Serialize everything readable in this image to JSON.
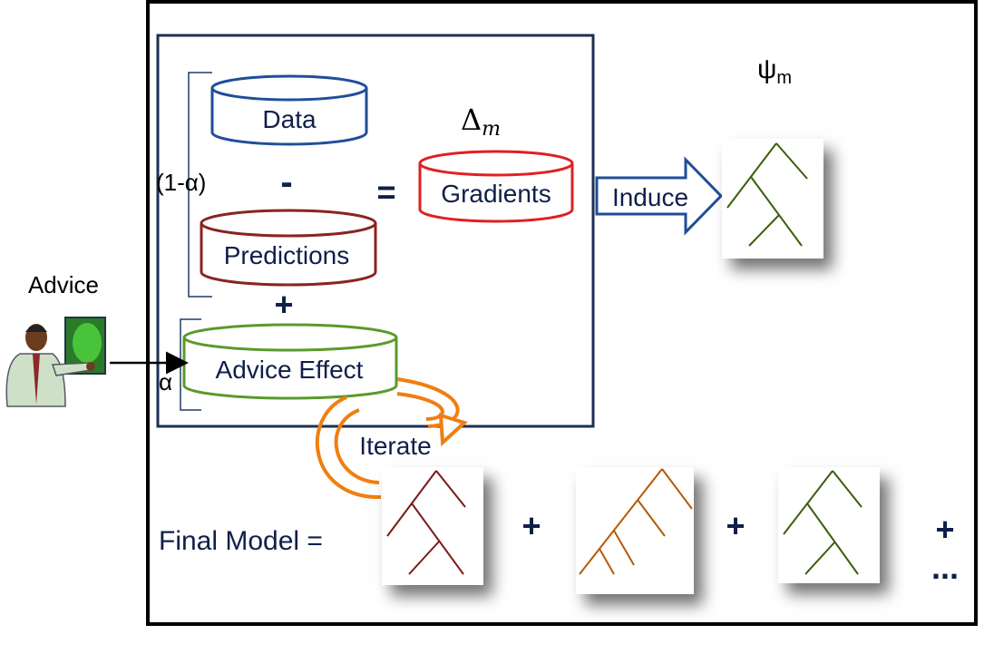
{
  "labels": {
    "psi": "ψ",
    "psi_sub": "m",
    "delta": "Δ",
    "delta_sub": "m",
    "data": "Data",
    "minus": "-",
    "equals": "=",
    "gradients": "Gradients",
    "one_minus_alpha": "(1-α)",
    "predictions": "Predictions",
    "plus": "+",
    "alpha": "α",
    "advice_effect": "Advice Effect",
    "advice": "Advice",
    "induce": "Induce",
    "iterate": "Iterate",
    "final_model": "Final Model =",
    "plus_1": "+",
    "plus_2": "+",
    "plus_3": "+",
    "ellipsis": "..."
  },
  "colors": {
    "data_db": "#1f4e99",
    "gradients_db": "#e02020",
    "predictions_db": "#8b2323",
    "advice_db": "#5a9a2a",
    "iterate_arrow": "#f07f10",
    "induce_arrow": "#1f4e99",
    "tree_green": "#3a5f0b",
    "tree_brown": "#7a1a1a",
    "tree_orange": "#b45a06",
    "text_navy": "#0f1f4a"
  },
  "icons": {
    "advisor": "presenter-icon"
  }
}
